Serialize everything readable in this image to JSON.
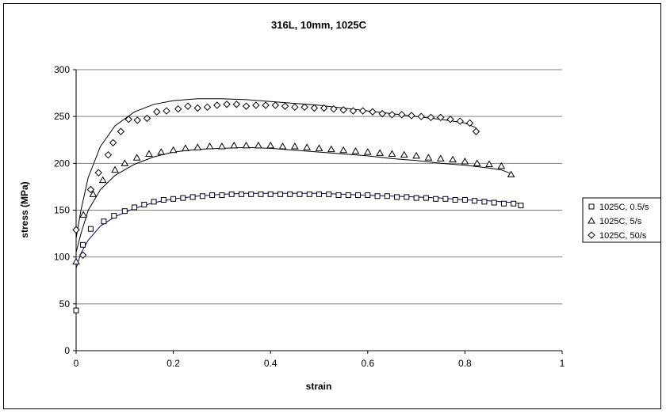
{
  "chart_data": {
    "type": "scatter",
    "title": "316L, 10mm, 1025C",
    "xlabel": "strain",
    "ylabel": "stress (MPa)",
    "xlim": [
      0,
      1
    ],
    "ylim": [
      0,
      300
    ],
    "xticks": [
      0,
      0.2,
      0.4,
      0.6,
      0.8,
      1
    ],
    "xtick_labels": [
      "0",
      "0.2",
      "0.4",
      "0.6",
      "0.8",
      "1"
    ],
    "yticks": [
      0,
      50,
      100,
      150,
      200,
      250,
      300
    ],
    "ytick_labels": [
      "0",
      "50",
      "100",
      "150",
      "200",
      "250",
      "300"
    ],
    "grid": "horizontal",
    "legend_position": "right",
    "series": [
      {
        "name": "1025C, 0.5/s",
        "marker": "square",
        "points": [
          [
            0.0,
            43
          ],
          [
            0.014,
            113
          ],
          [
            0.03,
            130
          ],
          [
            0.057,
            138
          ],
          [
            0.078,
            144
          ],
          [
            0.1,
            149
          ],
          [
            0.12,
            153
          ],
          [
            0.14,
            156
          ],
          [
            0.16,
            159
          ],
          [
            0.18,
            161
          ],
          [
            0.2,
            162
          ],
          [
            0.22,
            163
          ],
          [
            0.24,
            164
          ],
          [
            0.26,
            165
          ],
          [
            0.28,
            166
          ],
          [
            0.3,
            166
          ],
          [
            0.32,
            167
          ],
          [
            0.34,
            167
          ],
          [
            0.36,
            167
          ],
          [
            0.38,
            167
          ],
          [
            0.4,
            167
          ],
          [
            0.42,
            167
          ],
          [
            0.44,
            167
          ],
          [
            0.46,
            167
          ],
          [
            0.48,
            167
          ],
          [
            0.5,
            167
          ],
          [
            0.52,
            167
          ],
          [
            0.54,
            166
          ],
          [
            0.56,
            166
          ],
          [
            0.58,
            166
          ],
          [
            0.6,
            166
          ],
          [
            0.62,
            165
          ],
          [
            0.64,
            165
          ],
          [
            0.66,
            164
          ],
          [
            0.68,
            164
          ],
          [
            0.7,
            163
          ],
          [
            0.72,
            163
          ],
          [
            0.74,
            162
          ],
          [
            0.76,
            162
          ],
          [
            0.78,
            161
          ],
          [
            0.8,
            161
          ],
          [
            0.82,
            160
          ],
          [
            0.84,
            159
          ],
          [
            0.86,
            158
          ],
          [
            0.88,
            157
          ],
          [
            0.9,
            157
          ],
          [
            0.915,
            155
          ]
        ],
        "fit_curve": [
          [
            0.0,
            88
          ],
          [
            0.01,
            104
          ],
          [
            0.025,
            118
          ],
          [
            0.05,
            133
          ],
          [
            0.08,
            143
          ],
          [
            0.12,
            152
          ],
          [
            0.16,
            158
          ],
          [
            0.2,
            162
          ],
          [
            0.25,
            165
          ],
          [
            0.3,
            167
          ],
          [
            0.35,
            168
          ],
          [
            0.4,
            168
          ],
          [
            0.45,
            168
          ],
          [
            0.5,
            168
          ],
          [
            0.55,
            167
          ],
          [
            0.6,
            166
          ],
          [
            0.65,
            165
          ],
          [
            0.7,
            164
          ],
          [
            0.75,
            163
          ],
          [
            0.8,
            161
          ],
          [
            0.85,
            160
          ],
          [
            0.9,
            158
          ],
          [
            0.915,
            157
          ]
        ]
      },
      {
        "name": "1025C, 5/s",
        "marker": "triangle",
        "points": [
          [
            0.0,
            95
          ],
          [
            0.015,
            145
          ],
          [
            0.035,
            167
          ],
          [
            0.055,
            182
          ],
          [
            0.08,
            193
          ],
          [
            0.1,
            200
          ],
          [
            0.125,
            206
          ],
          [
            0.15,
            210
          ],
          [
            0.175,
            212
          ],
          [
            0.2,
            214
          ],
          [
            0.225,
            216
          ],
          [
            0.25,
            217
          ],
          [
            0.275,
            218
          ],
          [
            0.3,
            218
          ],
          [
            0.325,
            219
          ],
          [
            0.35,
            219
          ],
          [
            0.375,
            219
          ],
          [
            0.4,
            219
          ],
          [
            0.425,
            218
          ],
          [
            0.45,
            218
          ],
          [
            0.475,
            217
          ],
          [
            0.5,
            216
          ],
          [
            0.525,
            215
          ],
          [
            0.55,
            214
          ],
          [
            0.575,
            213
          ],
          [
            0.6,
            212
          ],
          [
            0.625,
            211
          ],
          [
            0.65,
            210
          ],
          [
            0.675,
            209
          ],
          [
            0.7,
            208
          ],
          [
            0.725,
            206
          ],
          [
            0.75,
            205
          ],
          [
            0.775,
            204
          ],
          [
            0.8,
            202
          ],
          [
            0.825,
            200
          ],
          [
            0.85,
            199
          ],
          [
            0.875,
            197
          ],
          [
            0.895,
            188
          ]
        ],
        "fit_curve": [
          [
            0.0,
            105
          ],
          [
            0.01,
            125
          ],
          [
            0.025,
            150
          ],
          [
            0.05,
            172
          ],
          [
            0.08,
            187
          ],
          [
            0.12,
            199
          ],
          [
            0.16,
            207
          ],
          [
            0.2,
            212
          ],
          [
            0.25,
            215
          ],
          [
            0.3,
            216
          ],
          [
            0.35,
            217
          ],
          [
            0.4,
            216
          ],
          [
            0.45,
            214
          ],
          [
            0.5,
            212
          ],
          [
            0.55,
            210
          ],
          [
            0.6,
            208
          ],
          [
            0.65,
            205
          ],
          [
            0.7,
            203
          ],
          [
            0.75,
            200
          ],
          [
            0.8,
            198
          ],
          [
            0.85,
            195
          ],
          [
            0.875,
            193
          ],
          [
            0.895,
            189
          ]
        ]
      },
      {
        "name": "1025C, 50/s",
        "marker": "diamond",
        "points": [
          [
            0.0,
            129
          ],
          [
            0.014,
            102
          ],
          [
            0.03,
            172
          ],
          [
            0.046,
            190
          ],
          [
            0.066,
            209
          ],
          [
            0.076,
            222
          ],
          [
            0.092,
            234
          ],
          [
            0.108,
            247
          ],
          [
            0.126,
            246
          ],
          [
            0.146,
            248
          ],
          [
            0.166,
            255
          ],
          [
            0.186,
            256
          ],
          [
            0.21,
            258
          ],
          [
            0.23,
            261
          ],
          [
            0.25,
            259
          ],
          [
            0.27,
            260
          ],
          [
            0.29,
            262
          ],
          [
            0.31,
            263
          ],
          [
            0.33,
            263
          ],
          [
            0.35,
            261
          ],
          [
            0.37,
            262
          ],
          [
            0.39,
            262
          ],
          [
            0.41,
            262
          ],
          [
            0.43,
            261
          ],
          [
            0.45,
            260
          ],
          [
            0.47,
            260
          ],
          [
            0.49,
            259
          ],
          [
            0.51,
            259
          ],
          [
            0.53,
            258
          ],
          [
            0.55,
            257
          ],
          [
            0.57,
            256
          ],
          [
            0.59,
            256
          ],
          [
            0.61,
            255
          ],
          [
            0.63,
            253
          ],
          [
            0.65,
            252
          ],
          [
            0.67,
            252
          ],
          [
            0.69,
            251
          ],
          [
            0.71,
            250
          ],
          [
            0.73,
            249
          ],
          [
            0.75,
            249
          ],
          [
            0.77,
            247
          ],
          [
            0.79,
            245
          ],
          [
            0.81,
            243
          ],
          [
            0.823,
            234
          ]
        ],
        "fit_curve": [
          [
            0.0,
            120
          ],
          [
            0.01,
            150
          ],
          [
            0.025,
            185
          ],
          [
            0.05,
            218
          ],
          [
            0.08,
            240
          ],
          [
            0.12,
            255
          ],
          [
            0.16,
            263
          ],
          [
            0.2,
            267
          ],
          [
            0.25,
            269
          ],
          [
            0.3,
            269
          ],
          [
            0.35,
            268
          ],
          [
            0.4,
            266
          ],
          [
            0.45,
            264
          ],
          [
            0.5,
            262
          ],
          [
            0.55,
            259
          ],
          [
            0.6,
            256
          ],
          [
            0.65,
            253
          ],
          [
            0.7,
            250
          ],
          [
            0.75,
            247
          ],
          [
            0.8,
            243
          ],
          [
            0.823,
            238
          ]
        ]
      }
    ]
  }
}
